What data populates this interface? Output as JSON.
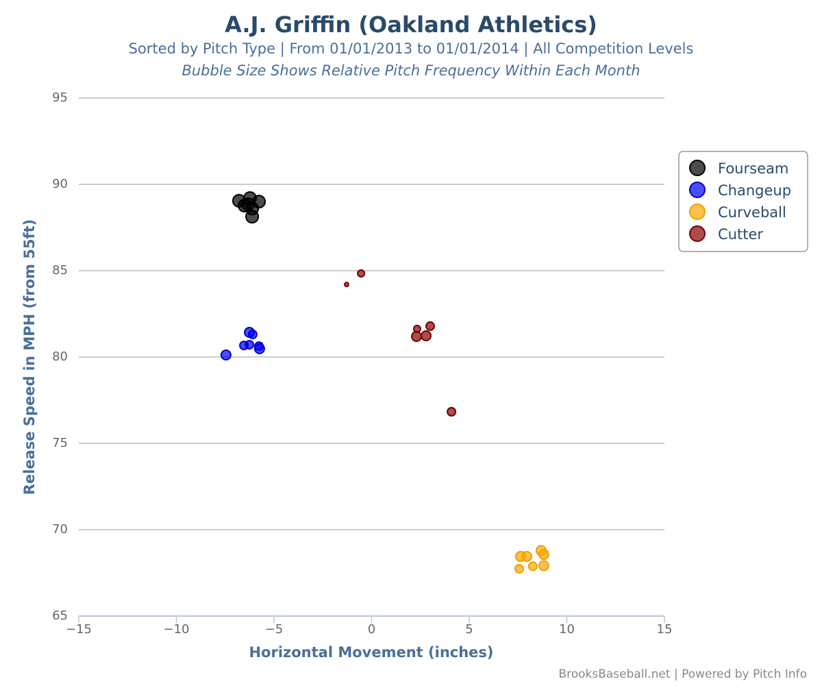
{
  "chart_data": {
    "type": "bubble",
    "title": "A.J. Griffin (Oakland Athletics)",
    "subtitle": "Sorted by Pitch Type | From 01/01/2013 to 01/01/2014 | All Competition Levels",
    "note": "Bubble Size Shows Relative Pitch Frequency Within Each Month",
    "x_label": "Horizontal Movement (inches)",
    "y_label": "Release Speed in MPH (from 55ft)",
    "credit": "BrooksBaseball.net | Powered by Pitch Info",
    "xlim": [
      -15,
      15
    ],
    "ylim": [
      65,
      95
    ],
    "xticks": [
      {
        "value": -15,
        "label": "−15"
      },
      {
        "value": -10,
        "label": "−10"
      },
      {
        "value": -5,
        "label": "−5"
      },
      0,
      5,
      10,
      15
    ],
    "yticks": [
      65,
      70,
      75,
      80,
      85,
      90,
      95
    ],
    "grid": true,
    "legend": "right",
    "series": [
      {
        "name": "Fourseam",
        "color": "#000000",
        "stroke": "#000000",
        "x": [
          -6.79,
          -6.23,
          -5.77,
          -6.51,
          -6.33,
          -6.12,
          -6.12
        ],
        "values": [
          89.05,
          89.2,
          89.0,
          88.77,
          88.85,
          88.6,
          88.13
        ],
        "sizes": [
          9,
          9,
          9,
          9,
          9,
          9,
          9
        ]
      },
      {
        "name": "Changeup",
        "color": "#0000ff",
        "stroke": "#0000cc",
        "x": [
          -7.46,
          -6.26,
          -6.09,
          -6.54,
          -6.26,
          -5.77,
          -5.74
        ],
        "values": [
          80.12,
          81.43,
          81.31,
          80.67,
          80.71,
          80.63,
          80.48
        ],
        "sizes": [
          7,
          7,
          6,
          6,
          6,
          6,
          7
        ]
      },
      {
        "name": "Curveball",
        "color": "#ffa500",
        "stroke": "#f0a000",
        "x": [
          7.63,
          7.95,
          8.68,
          8.82,
          7.56,
          8.26,
          8.82
        ],
        "values": [
          68.45,
          68.45,
          68.8,
          68.57,
          67.74,
          67.88,
          67.92
        ],
        "sizes": [
          7,
          7,
          7,
          7,
          6,
          6,
          7
        ]
      },
      {
        "name": "Cutter",
        "color": "#8b0000",
        "stroke": "#700000",
        "x": [
          -1.28,
          -0.54,
          2.33,
          3.0,
          2.3,
          2.79,
          4.09
        ],
        "values": [
          84.2,
          84.84,
          81.63,
          81.79,
          81.19,
          81.23,
          76.83
        ],
        "sizes": [
          3,
          5,
          5,
          6,
          7,
          7,
          6
        ]
      }
    ]
  }
}
